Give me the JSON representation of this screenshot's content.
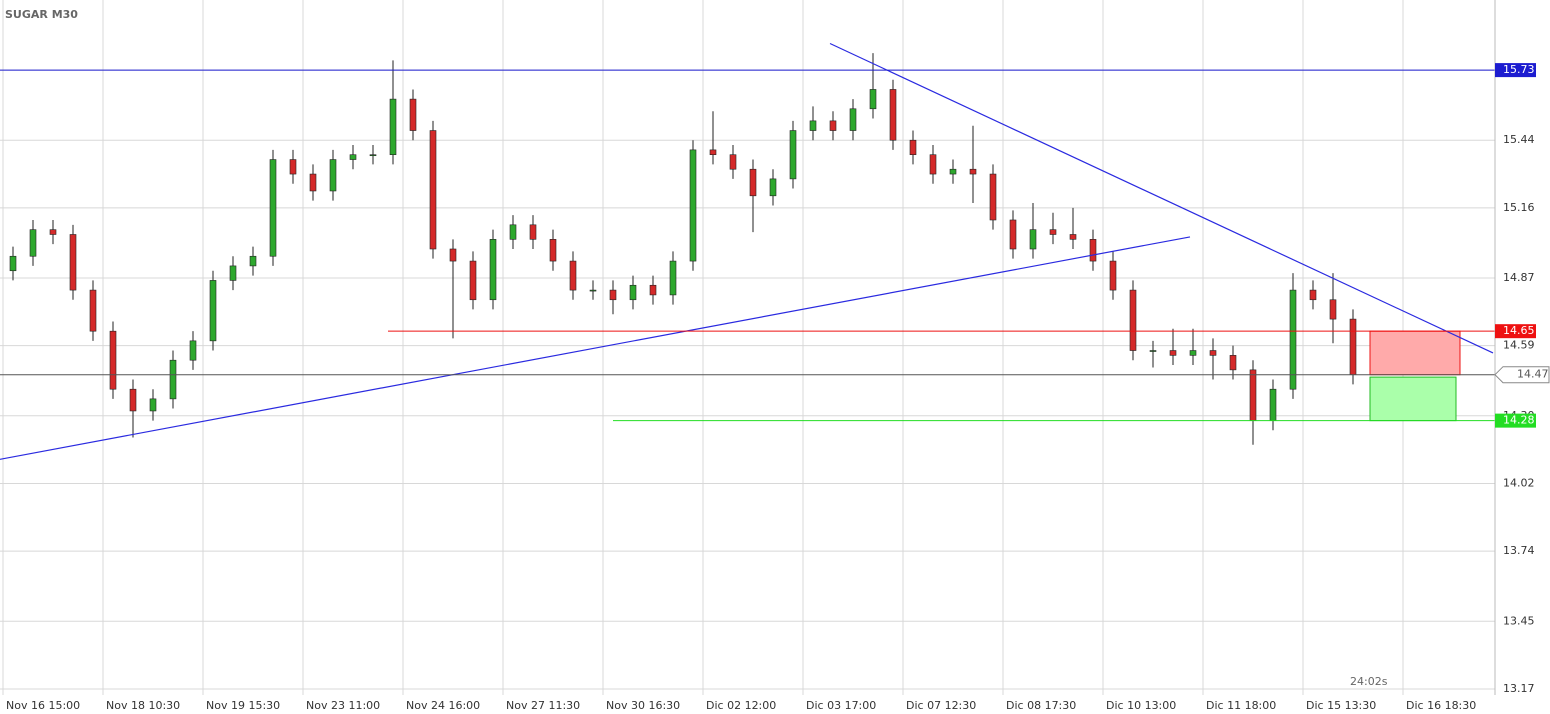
{
  "chart_data": {
    "type": "candlestick",
    "title": "SUGAR M30",
    "timer": "24:02s",
    "xlim": [
      -0.3,
      149.2
    ],
    "ylim": [
      13.145,
      16.02
    ],
    "xticks": [
      {
        "value": 0,
        "label": "Nov 16 15:00"
      },
      {
        "value": 10,
        "label": "Nov 18 10:30"
      },
      {
        "value": 20,
        "label": "Nov 19 15:30"
      },
      {
        "value": 30,
        "label": "Nov 23 11:00"
      },
      {
        "value": 40,
        "label": "Nov 24 16:00"
      },
      {
        "value": 50,
        "label": "Nov 27 11:30"
      },
      {
        "value": 60,
        "label": "Nov 30 16:30"
      },
      {
        "value": 70,
        "label": "Dic 02 12:00"
      },
      {
        "value": 80,
        "label": "Dic 03 17:00"
      },
      {
        "value": 90,
        "label": "Dic 07 12:30"
      },
      {
        "value": 100,
        "label": "Dic 08 17:30"
      },
      {
        "value": 110,
        "label": "Dic 10 13:00"
      },
      {
        "value": 120,
        "label": "Dic 11 18:00"
      },
      {
        "value": 130,
        "label": "Dic 15 13:30"
      },
      {
        "value": 140,
        "label": "Dic 16 18:30"
      }
    ],
    "yticks": [
      15.73,
      15.44,
      15.16,
      14.87,
      14.59,
      {
        "value": 14.3,
        "label": "14.30"
      },
      14.02,
      13.74,
      13.45,
      13.17
    ],
    "grid": true,
    "up_color": "#2ea82e",
    "down_color": "#d42a2a",
    "x": [
      1,
      3,
      5,
      7,
      9,
      11,
      13,
      15,
      17,
      19,
      21,
      23,
      25,
      27,
      29,
      31,
      33,
      35,
      37,
      39,
      41,
      43,
      45,
      47,
      49,
      51,
      53,
      55,
      57,
      59,
      61,
      63,
      65,
      67,
      69,
      71,
      73,
      75,
      77,
      79,
      81,
      83,
      85,
      87,
      89,
      91,
      93,
      95,
      97,
      99,
      101,
      103,
      105,
      107,
      109,
      111,
      113,
      115,
      117,
      119,
      121,
      123,
      125,
      127,
      129,
      131,
      133,
      135
    ],
    "open": [
      14.9,
      14.96,
      15.07,
      15.05,
      14.82,
      14.65,
      14.41,
      14.32,
      14.37,
      14.53,
      14.61,
      14.86,
      14.92,
      14.96,
      15.36,
      15.3,
      15.23,
      15.36,
      15.38,
      15.38,
      15.61,
      15.48,
      14.99,
      14.94,
      14.78,
      15.03,
      15.09,
      15.03,
      14.94,
      14.82,
      14.82,
      14.78,
      14.84,
      14.8,
      14.94,
      15.4,
      15.38,
      15.32,
      15.21,
      15.28,
      15.48,
      15.52,
      15.48,
      15.57,
      15.65,
      15.44,
      15.38,
      15.3,
      15.32,
      15.3,
      15.11,
      14.99,
      15.07,
      15.05,
      15.03,
      14.94,
      14.82,
      14.57,
      14.57,
      14.55,
      14.57,
      14.55,
      14.49,
      14.28,
      14.41,
      14.82,
      14.78,
      14.7
    ],
    "high": [
      15.0,
      15.11,
      15.11,
      15.09,
      14.86,
      14.69,
      14.45,
      14.41,
      14.57,
      14.65,
      14.9,
      14.96,
      15.0,
      15.4,
      15.4,
      15.34,
      15.4,
      15.42,
      15.42,
      15.77,
      15.65,
      15.52,
      15.03,
      14.98,
      15.07,
      15.13,
      15.13,
      15.07,
      14.98,
      14.86,
      14.86,
      14.88,
      14.88,
      14.98,
      15.44,
      15.56,
      15.42,
      15.36,
      15.32,
      15.52,
      15.58,
      15.56,
      15.61,
      15.8,
      15.69,
      15.48,
      15.42,
      15.36,
      15.5,
      15.34,
      15.15,
      15.18,
      15.14,
      15.16,
      15.07,
      14.98,
      14.86,
      14.61,
      14.66,
      14.66,
      14.62,
      14.59,
      14.53,
      14.45,
      14.89,
      14.86,
      14.89,
      14.74
    ],
    "low": [
      14.86,
      14.92,
      15.01,
      14.78,
      14.61,
      14.37,
      14.21,
      14.28,
      14.33,
      14.49,
      14.57,
      14.82,
      14.88,
      14.92,
      15.26,
      15.19,
      15.19,
      15.32,
      15.34,
      15.34,
      15.44,
      14.95,
      14.62,
      14.74,
      14.74,
      14.99,
      14.99,
      14.9,
      14.78,
      14.78,
      14.72,
      14.74,
      14.76,
      14.76,
      14.9,
      15.34,
      15.28,
      15.06,
      15.17,
      15.24,
      15.44,
      15.44,
      15.44,
      15.53,
      15.4,
      15.34,
      15.26,
      15.26,
      15.18,
      15.07,
      14.95,
      14.95,
      15.01,
      14.99,
      14.9,
      14.78,
      14.53,
      14.5,
      14.51,
      14.51,
      14.45,
      14.45,
      14.18,
      14.24,
      14.37,
      14.74,
      14.6,
      14.43
    ],
    "close": [
      14.96,
      15.07,
      15.05,
      14.82,
      14.65,
      14.41,
      14.32,
      14.37,
      14.53,
      14.61,
      14.86,
      14.92,
      14.96,
      15.36,
      15.3,
      15.23,
      15.36,
      15.38,
      15.38,
      15.61,
      15.48,
      14.99,
      14.94,
      14.78,
      15.03,
      15.09,
      15.03,
      14.94,
      14.82,
      14.82,
      14.78,
      14.84,
      14.8,
      14.94,
      15.4,
      15.38,
      15.32,
      15.21,
      15.28,
      15.48,
      15.52,
      15.48,
      15.57,
      15.65,
      15.44,
      15.38,
      15.3,
      15.32,
      15.3,
      15.11,
      14.99,
      15.07,
      15.05,
      15.03,
      14.94,
      14.82,
      14.57,
      14.57,
      14.55,
      14.57,
      14.55,
      14.49,
      14.28,
      14.41,
      14.82,
      14.78,
      14.7,
      14.47
    ],
    "levels": [
      {
        "value": 15.73,
        "color": "#1c1cd0",
        "x_start": -0.3
      },
      {
        "value": 14.65,
        "color": "#ee1111",
        "x_start": 38.5
      },
      {
        "value": 14.47,
        "color": "#555555",
        "x_start": -0.3,
        "tag": "outline"
      },
      {
        "value": 14.28,
        "color": "#22dd22",
        "x_start": 61
      }
    ],
    "trendlines": [
      {
        "x": [
          -0.3,
          118.7
        ],
        "y": [
          14.12,
          15.04
        ],
        "color": "#2a2ae0"
      },
      {
        "x": [
          82.7,
          149
        ],
        "y": [
          15.84,
          14.56
        ],
        "color": "#2a2ae0"
      }
    ],
    "zones": [
      {
        "x": [
          136.7,
          145.7
        ],
        "y": [
          14.47,
          14.65
        ],
        "color": "#ffaaaa",
        "border": "#ee1111"
      },
      {
        "x": [
          136.7,
          145.3
        ],
        "y": [
          14.28,
          14.46
        ],
        "color": "#aaffaa",
        "border": "#22bb22"
      }
    ]
  }
}
